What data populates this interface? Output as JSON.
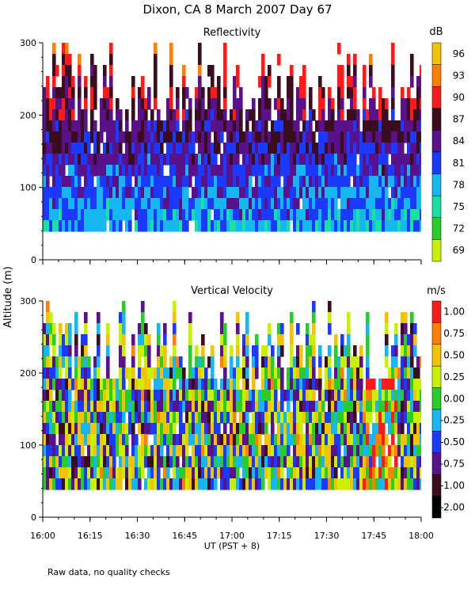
{
  "page_title": "Dixon, CA  8 March 2007  Day  67",
  "shared_ylabel": "Altitude (m)",
  "x_axis": {
    "label": "UT  (PST + 8)",
    "ticks": [
      "16:00",
      "16:15",
      "16:30",
      "16:45",
      "17:00",
      "17:15",
      "17:30",
      "17:45",
      "18:00"
    ]
  },
  "footer_note": "Raw data, no quality checks",
  "chart_data": [
    {
      "type": "heatmap",
      "title": "Reflectivity",
      "xlabel": "UT  (PST + 8)",
      "ylabel": "Altitude (m)",
      "x_range": [
        "16:00",
        "18:00"
      ],
      "ylim": [
        0,
        300
      ],
      "yticks": [
        0,
        100,
        200,
        300
      ],
      "data_altitude_range": [
        40,
        300
      ],
      "colorbar": {
        "unit": "dB",
        "labels": [
          "96",
          "93",
          "90",
          "87",
          "84",
          "81",
          "78",
          "75",
          "72",
          "69"
        ],
        "colors": [
          "#f2c300",
          "#ff7f00",
          "#ff1a1a",
          "#3a0e1e",
          "#5a128a",
          "#1a3aff",
          "#18b6f0",
          "#18e0a0",
          "#29cc29",
          "#c8f000"
        ]
      },
      "description_fields": {
        "typical_low_altitude": "75-81",
        "typical_high_altitude": "84-90"
      }
    },
    {
      "type": "heatmap",
      "title": "Vertical Velocity",
      "xlabel": "UT  (PST + 8)",
      "ylabel": "Altitude (m)",
      "x_range": [
        "16:00",
        "18:00"
      ],
      "ylim": [
        0,
        300
      ],
      "yticks": [
        0,
        100,
        200,
        300
      ],
      "data_altitude_range": [
        40,
        300
      ],
      "colorbar": {
        "unit": "m/s",
        "labels": [
          "1.00",
          "0.75",
          "0.50",
          "0.25",
          "0.00",
          "-0.25",
          "-0.50",
          "-0.75",
          "-1.00",
          "-2.00"
        ],
        "colors": [
          "#ff1a1a",
          "#ff7f00",
          "#f2c300",
          "#c8f000",
          "#29cc29",
          "#18b6f0",
          "#1a3aff",
          "#5a128a",
          "#3a0e1e",
          "#000000"
        ]
      }
    }
  ]
}
